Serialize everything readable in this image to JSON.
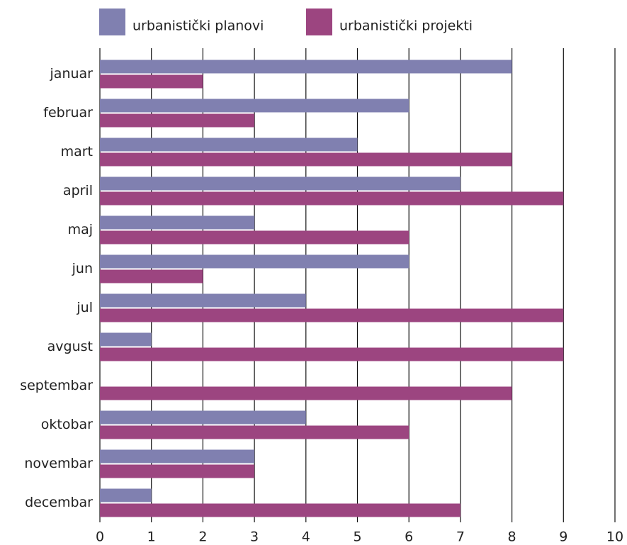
{
  "chart_data": {
    "type": "bar",
    "orientation": "horizontal",
    "categories": [
      "januar",
      "februar",
      "mart",
      "april",
      "maj",
      "jun",
      "jul",
      "avgust",
      "septembar",
      "oktobar",
      "novembar",
      "decembar"
    ],
    "series": [
      {
        "name": "urbanistički planovi",
        "color": "#8080b0",
        "values": [
          8,
          6,
          5,
          7,
          3,
          6,
          4,
          1,
          0,
          4,
          3,
          1
        ]
      },
      {
        "name": "urbanistički projekti",
        "color": "#9c4580",
        "values": [
          2,
          3,
          8,
          9,
          6,
          2,
          9,
          9,
          8,
          6,
          3,
          7
        ]
      }
    ],
    "xlim": [
      0,
      10
    ],
    "xticks": [
      0,
      1,
      2,
      3,
      4,
      5,
      6,
      7,
      8,
      9,
      10
    ],
    "grid": true,
    "legend": "top"
  }
}
